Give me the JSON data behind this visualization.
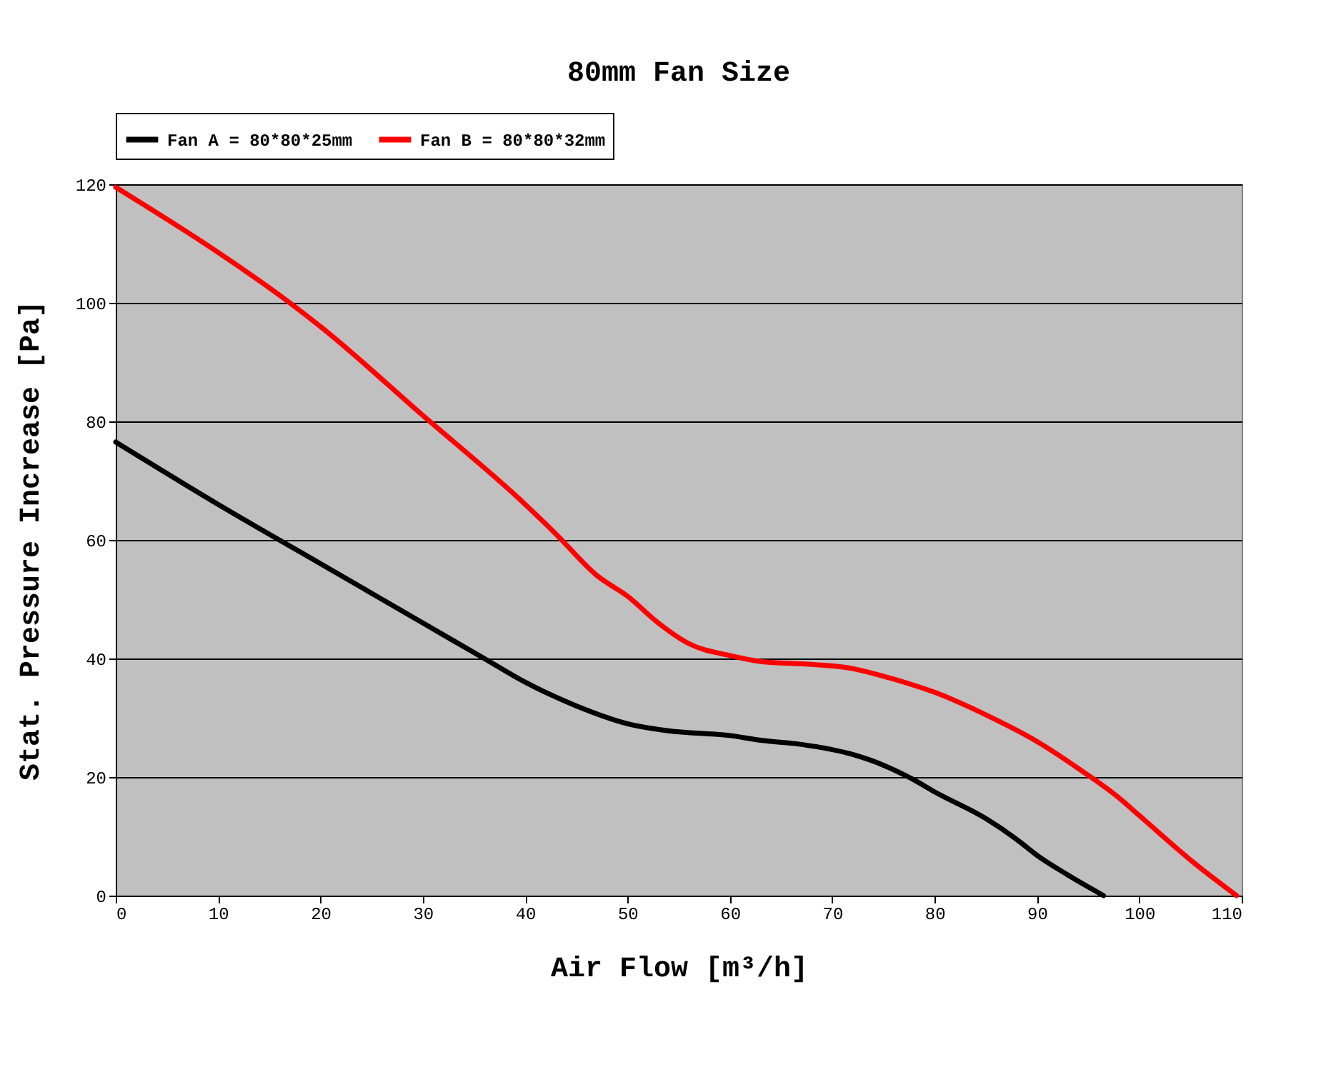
{
  "chart_data": {
    "type": "line",
    "title": "80mm Fan Size",
    "xlabel": "Air Flow [m³/h]",
    "ylabel": "Stat. Pressure Increase [Pa]",
    "xlim": [
      0,
      110
    ],
    "xticks": [
      0,
      10,
      20,
      30,
      40,
      50,
      60,
      70,
      80,
      90,
      100,
      110
    ],
    "ylim": [
      0,
      120
    ],
    "yticks": [
      0,
      20,
      40,
      60,
      80,
      100,
      120
    ],
    "grid": "y",
    "legend": "top",
    "marker": "none",
    "line_style": "solid",
    "series": [
      {
        "name": "Fan A = 80*80*25mm",
        "color": "#000000",
        "x": [
          0,
          10,
          20,
          30,
          36,
          40,
          45,
          50,
          54,
          60,
          63,
          67,
          72,
          75,
          78,
          80,
          85,
          88,
          90,
          93,
          96.5
        ],
        "values": [
          76.5,
          66,
          56,
          46,
          40,
          36,
          32,
          29,
          27.8,
          27,
          26.2,
          25.5,
          23.8,
          22,
          19.5,
          17.5,
          13,
          9.5,
          6.8,
          3.5,
          0
        ]
      },
      {
        "name": "Fan B = 80*80*32mm",
        "color": "#ff0000",
        "x": [
          0,
          10,
          17,
          20,
          30,
          40,
          43,
          47,
          50,
          53,
          56,
          60,
          63,
          68,
          72,
          75,
          80,
          85,
          90,
          94,
          98,
          100,
          105,
          109.5
        ],
        "values": [
          119.5,
          108.5,
          100,
          96,
          81,
          66,
          61,
          54,
          50.5,
          46,
          42.5,
          40.5,
          39.5,
          39,
          38.3,
          37,
          34.3,
          30.5,
          26,
          21.5,
          16.5,
          13.5,
          6,
          0
        ]
      }
    ]
  }
}
